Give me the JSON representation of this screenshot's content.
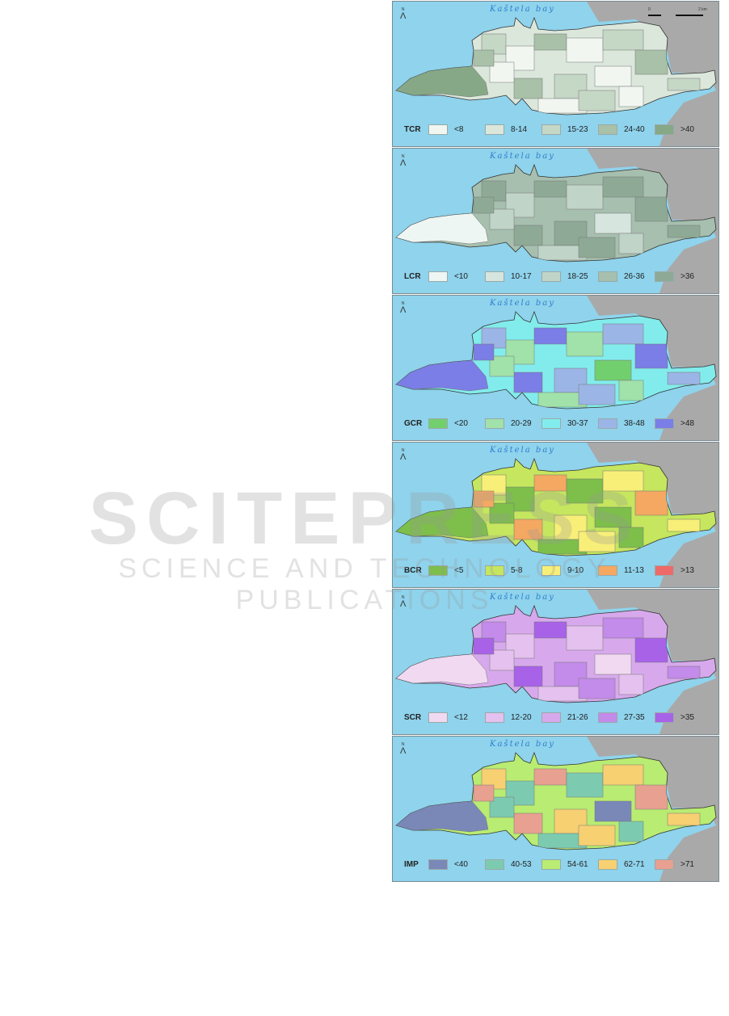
{
  "figure": {
    "bay_label": "Kaštela bay",
    "north_label": "N",
    "scale": {
      "start": "0",
      "end": "2 km"
    },
    "panels": [
      {
        "code": "TCR",
        "classes": [
          "<8",
          "8-14",
          "15-23",
          "24-40",
          ">40"
        ],
        "colors": [
          "#f1f6f1",
          "#dbe7db",
          "#c5d7c5",
          "#a8c1a8",
          "#86a886"
        ],
        "dominant": 1,
        "hill": 4
      },
      {
        "code": "LCR",
        "classes": [
          "<10",
          "10-17",
          "18-25",
          "26-36",
          ">36"
        ],
        "colors": [
          "#eef6f3",
          "#d6e5de",
          "#c0d4c8",
          "#a6bfae",
          "#8eaa96"
        ],
        "dominant": 3,
        "hill": 0
      },
      {
        "code": "GCR",
        "classes": [
          "<20",
          "20-29",
          "30-37",
          "38-48",
          ">48"
        ],
        "colors": [
          "#72cf6e",
          "#a0e2aa",
          "#82ecec",
          "#9bb5e6",
          "#7a7ee6"
        ],
        "dominant": 2,
        "hill": 4
      },
      {
        "code": "BCR",
        "classes": [
          "<5",
          "5-8",
          "9-10",
          "11-13",
          ">13"
        ],
        "colors": [
          "#7dbf4a",
          "#c5e65e",
          "#f7ef78",
          "#f4a862",
          "#ee6a6a"
        ],
        "dominant": 1,
        "hill": 0
      },
      {
        "code": "SCR",
        "classes": [
          "<12",
          "12-20",
          "21-26",
          "27-35",
          ">35"
        ],
        "colors": [
          "#f1d9f1",
          "#e4c1ee",
          "#d7a9ec",
          "#c38bea",
          "#a862e8"
        ],
        "dominant": 2,
        "hill": 0
      },
      {
        "code": "IMP",
        "classes": [
          "<40",
          "40-53",
          "54-61",
          "62-71",
          ">71"
        ],
        "colors": [
          "#7a88b8",
          "#7ccbb0",
          "#b9ec72",
          "#f7d072",
          "#e8a090"
        ],
        "dominant": 2,
        "hill": 0
      }
    ]
  },
  "colors": {
    "sea": "#8fd3ec",
    "terrain": "#a9a9a9"
  },
  "watermark": {
    "line1": "SCITEPRESS",
    "line2": "SCIENCE AND TECHNOLOGY PUBLICATIONS"
  }
}
